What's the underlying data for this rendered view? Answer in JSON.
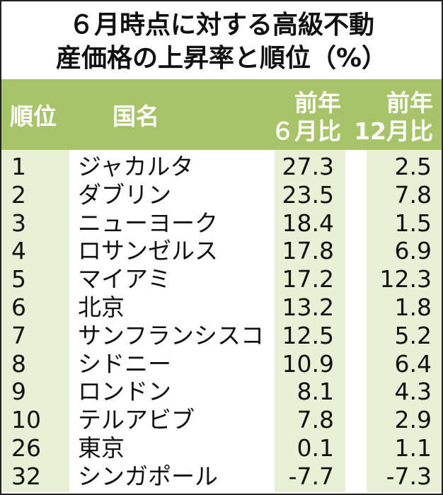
{
  "title_line1": "６月時点に対する高級不動",
  "title_line2": "産価格の上昇率と順位（%）",
  "headers": {
    "rank": "順位",
    "name": "国名",
    "c1_line1": "前年",
    "c1_line2": "６月比",
    "c2_line1": "前年",
    "c2_line2": "12月比"
  },
  "colors": {
    "header_bg": "#a8c468",
    "column_bg": "#e9f0d5",
    "header_text": "#ffffff"
  },
  "chart_data": {
    "type": "table",
    "title": "６月時点に対する高級不動産価格の上昇率と順位（%）",
    "columns": [
      "順位",
      "国名",
      "前年６月比",
      "前年12月比"
    ],
    "rows": [
      {
        "rank": "1",
        "name": "ジャカルタ",
        "v1": "27.3",
        "v2": "2.5"
      },
      {
        "rank": "2",
        "name": "ダブリン",
        "v1": "23.5",
        "v2": "7.8"
      },
      {
        "rank": "3",
        "name": "ニューヨーク",
        "v1": "18.4",
        "v2": "1.5"
      },
      {
        "rank": "4",
        "name": "ロサンゼルス",
        "v1": "17.8",
        "v2": "6.9"
      },
      {
        "rank": "5",
        "name": "マイアミ",
        "v1": "17.2",
        "v2": "12.3"
      },
      {
        "rank": "6",
        "name": "北京",
        "v1": "13.2",
        "v2": "1.8"
      },
      {
        "rank": "7",
        "name": "サンフランシスコ",
        "v1": "12.5",
        "v2": "5.2"
      },
      {
        "rank": "8",
        "name": "シドニー",
        "v1": "10.9",
        "v2": "6.4"
      },
      {
        "rank": "9",
        "name": "ロンドン",
        "v1": "8.1",
        "v2": "4.3"
      },
      {
        "rank": "10",
        "name": "テルアビブ",
        "v1": "7.8",
        "v2": "2.9"
      },
      {
        "rank": "26",
        "name": "東京",
        "v1": "0.1",
        "v2": "1.1"
      },
      {
        "rank": "32",
        "name": "シンガポール",
        "v1": "-7.7",
        "v2": "-7.3"
      }
    ]
  }
}
